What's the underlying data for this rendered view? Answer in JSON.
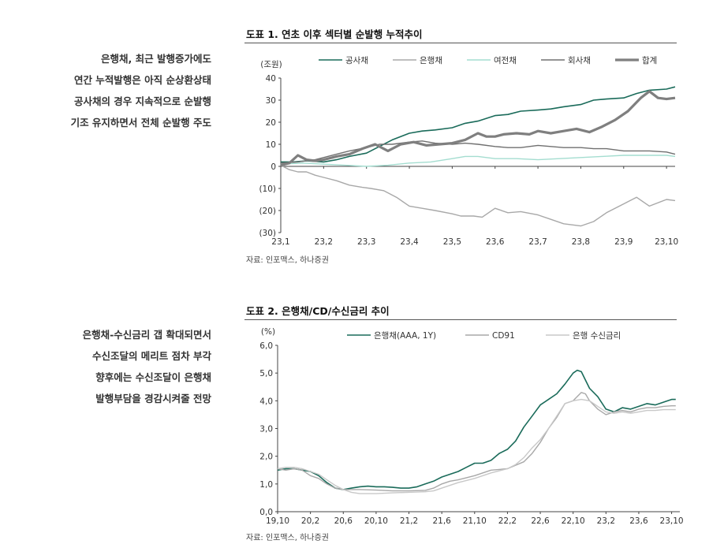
{
  "chart1": {
    "side_text": [
      "은행채, 최근 발행증가에도",
      "연간 누적발행은 아직 순상환상태",
      "공사채의 경우 지속적으로 순발행",
      "기조 유지하면서 전체 순발행 주도"
    ],
    "title": "도표 1. 연초 이후 섹터별 순발행 누적추이",
    "source": "자료: 인포맥스, 하나증권"
  },
  "chart2": {
    "side_text": [
      "은행채-수신금리 갭 확대되면서",
      "수신조달의 메리트 점차 부각",
      "향후에는 수신조달이 은행채",
      "발행부담을 경감시켜줄 전망"
    ],
    "title": "도표 2. 은행채/CD/수신금리 추이",
    "source": "자료: 인포맥스, 하나증권"
  },
  "chart_data": [
    {
      "type": "line",
      "title": "도표 1. 연초 이후 섹터별 순발행 누적추이",
      "ylabel": "(조원)",
      "ylim": [
        -30,
        40
      ],
      "yticks": [
        40,
        30,
        20,
        10,
        0,
        -10,
        -20,
        -30
      ],
      "ytick_labels": [
        "40",
        "30",
        "20",
        "10",
        "0",
        "(10)",
        "(20)",
        "(30)"
      ],
      "xlim": [
        1,
        10.2
      ],
      "xticks": [
        1,
        2,
        3,
        4,
        5,
        6,
        7,
        8,
        9,
        10
      ],
      "xtick_labels": [
        "23,1",
        "23,2",
        "23,3",
        "23,4",
        "23,5",
        "23,6",
        "23,7",
        "23,8",
        "23,9",
        "23,10"
      ],
      "grid": false,
      "legend_position": "top",
      "series": [
        {
          "name": "공사채",
          "color": "#1a6b5a",
          "width": 1.6,
          "x": [
            1,
            1.3,
            1.6,
            2,
            2.3,
            2.6,
            3,
            3.3,
            3.6,
            4,
            4.3,
            4.6,
            5,
            5.3,
            5.6,
            6,
            6.3,
            6.6,
            7,
            7.3,
            7.6,
            8,
            8.3,
            8.6,
            9,
            9.3,
            9.6,
            10,
            10.2
          ],
          "y": [
            2,
            2,
            2.5,
            2,
            3,
            4.5,
            6,
            9,
            12,
            15,
            16,
            16.5,
            17.5,
            19.5,
            20.5,
            23,
            23.5,
            25,
            25.5,
            26,
            27,
            28,
            30,
            30.5,
            31,
            33,
            34.5,
            35,
            36
          ]
        },
        {
          "name": "은행채",
          "color": "#a8a8a8",
          "width": 1.4,
          "x": [
            1,
            1.2,
            1.4,
            1.6,
            1.8,
            2,
            2.3,
            2.6,
            2.9,
            3.1,
            3.4,
            3.7,
            4,
            4.3,
            4.6,
            5,
            5.2,
            5.5,
            5.7,
            6,
            6.3,
            6.6,
            7,
            7.3,
            7.6,
            8,
            8.3,
            8.6,
            9,
            9.3,
            9.6,
            10,
            10.2
          ],
          "y": [
            0.5,
            -1.5,
            -2.5,
            -2.5,
            -4,
            -5,
            -6.5,
            -8.5,
            -9.5,
            -10,
            -11,
            -14,
            -18,
            -19,
            -20,
            -21.5,
            -22.5,
            -22.5,
            -23,
            -19,
            -21,
            -20.5,
            -22,
            -24,
            -26,
            -27,
            -25,
            -21,
            -17,
            -14,
            -18,
            -15,
            -15.5
          ]
        },
        {
          "name": "여전채",
          "color": "#a4ddd0",
          "width": 1.4,
          "x": [
            1,
            1.5,
            2,
            2.5,
            3,
            3.5,
            4,
            4.5,
            5,
            5.3,
            5.6,
            6,
            6.5,
            7,
            7.5,
            8,
            8.5,
            9,
            9.5,
            10,
            10.2
          ],
          "y": [
            1,
            1.5,
            1,
            0.5,
            0,
            0.5,
            1.5,
            2,
            3.5,
            4.5,
            4.5,
            3.5,
            3.5,
            3,
            3.5,
            4,
            4.5,
            5,
            5,
            5,
            4.5
          ]
        },
        {
          "name": "회사채",
          "color": "#707070",
          "width": 1.4,
          "x": [
            1,
            1.4,
            1.8,
            2,
            2.3,
            2.6,
            3,
            3.3,
            3.6,
            4,
            4.3,
            4.6,
            5,
            5.3,
            5.6,
            6,
            6.3,
            6.6,
            7,
            7.3,
            7.6,
            8,
            8.3,
            8.6,
            9,
            9.3,
            9.6,
            10,
            10.2
          ],
          "y": [
            1.5,
            2,
            3,
            4,
            5.5,
            7,
            8.5,
            10,
            10,
            11,
            11.5,
            10.5,
            10,
            10.5,
            10,
            9,
            8.5,
            8.5,
            9.5,
            9,
            8.5,
            8.5,
            8,
            8,
            7,
            7,
            7,
            6.5,
            5.5
          ]
        },
        {
          "name": "합계",
          "color": "#7f7f7f",
          "width": 3.2,
          "x": [
            1,
            1.2,
            1.4,
            1.6,
            1.8,
            2,
            2.3,
            2.6,
            2.9,
            3.2,
            3.5,
            3.8,
            4.1,
            4.4,
            4.7,
            5,
            5.3,
            5.6,
            5.8,
            6,
            6.2,
            6.5,
            6.8,
            7,
            7.3,
            7.6,
            7.9,
            8.2,
            8.5,
            8.8,
            9.1,
            9.4,
            9.6,
            9.8,
            10,
            10.2
          ],
          "y": [
            0.5,
            1.5,
            5,
            3,
            2.5,
            3,
            4.5,
            5.5,
            8,
            10,
            7,
            10,
            11,
            9.5,
            10,
            10.5,
            12,
            15,
            13.5,
            13.5,
            14.5,
            15,
            14.5,
            16,
            15,
            16,
            17,
            15.5,
            18,
            21,
            25,
            31,
            34,
            31,
            30.5,
            31
          ]
        }
      ]
    },
    {
      "type": "line",
      "title": "도표 2. 은행채/CD/수신금리 추이",
      "ylabel": "(%)",
      "ylim": [
        0,
        6
      ],
      "yticks": [
        0,
        1,
        2,
        3,
        4,
        5,
        6
      ],
      "ytick_labels": [
        "0,0",
        "1,0",
        "2,0",
        "3,0",
        "4,0",
        "5,0",
        "6,0"
      ],
      "xlim": [
        0,
        49
      ],
      "xticks": [
        0,
        4,
        8,
        12,
        16,
        20,
        24,
        28,
        32,
        36,
        40,
        44,
        48
      ],
      "xtick_labels": [
        "19,10",
        "20,2",
        "20,6",
        "20,10",
        "21,2",
        "21,6",
        "21,10",
        "22,2",
        "22,6",
        "22,10",
        "23,2",
        "23,6",
        "23,10"
      ],
      "grid": false,
      "legend_position": "top",
      "series": [
        {
          "name": "은행채(AAA, 1Y)",
          "color": "#1a6b5a",
          "width": 1.6,
          "x": [
            0,
            1,
            2,
            3,
            4,
            5,
            6,
            7,
            8,
            9,
            10,
            11,
            12,
            13,
            14,
            15,
            16,
            17,
            18,
            19,
            20,
            21,
            22,
            23,
            24,
            25,
            26,
            27,
            28,
            29,
            30,
            31,
            32,
            33,
            34,
            35,
            36,
            36.5,
            37,
            37.5,
            38,
            39,
            40,
            41,
            42,
            43,
            44,
            45,
            46,
            47,
            48,
            48.5
          ],
          "y": [
            1.5,
            1.55,
            1.55,
            1.5,
            1.45,
            1.3,
            1.05,
            0.85,
            0.8,
            0.85,
            0.9,
            0.92,
            0.9,
            0.9,
            0.88,
            0.85,
            0.85,
            0.9,
            1.0,
            1.1,
            1.25,
            1.35,
            1.45,
            1.6,
            1.75,
            1.75,
            1.85,
            2.1,
            2.25,
            2.55,
            3.05,
            3.45,
            3.85,
            4.05,
            4.25,
            4.6,
            5.0,
            5.1,
            5.05,
            4.75,
            4.45,
            4.15,
            3.7,
            3.6,
            3.75,
            3.7,
            3.8,
            3.9,
            3.85,
            3.95,
            4.05,
            4.05
          ]
        },
        {
          "name": "CD91",
          "color": "#a8a8a8",
          "width": 1.4,
          "x": [
            0,
            1,
            2,
            3,
            4,
            5,
            6,
            7,
            8,
            9,
            10,
            12,
            14,
            16,
            18,
            19,
            20,
            21,
            22,
            24,
            26,
            28,
            30,
            31,
            32,
            33,
            34,
            35,
            36,
            37,
            37.5,
            38,
            39,
            40,
            41,
            42,
            43,
            44,
            45,
            46,
            47,
            48,
            48.5
          ],
          "y": [
            1.55,
            1.5,
            1.55,
            1.5,
            1.3,
            1.2,
            1.0,
            0.85,
            0.8,
            0.8,
            0.8,
            0.78,
            0.75,
            0.75,
            0.77,
            0.85,
            1.0,
            1.1,
            1.15,
            1.3,
            1.5,
            1.55,
            1.8,
            2.1,
            2.5,
            3.0,
            3.4,
            3.9,
            4.0,
            4.3,
            4.25,
            4.0,
            3.7,
            3.5,
            3.6,
            3.65,
            3.6,
            3.7,
            3.75,
            3.75,
            3.8,
            3.82,
            3.82
          ]
        },
        {
          "name": "은행 수신금리",
          "color": "#c8c8c8",
          "width": 1.4,
          "x": [
            0,
            1,
            2,
            3,
            4,
            5,
            6,
            7,
            8,
            9,
            10,
            12,
            14,
            16,
            18,
            19,
            20,
            22,
            24,
            26,
            28,
            29,
            30,
            31,
            32,
            33,
            34,
            35,
            36,
            37,
            38,
            39,
            40,
            41,
            42,
            43,
            44,
            45,
            46,
            47,
            48,
            48.5
          ],
          "y": [
            1.55,
            1.6,
            1.6,
            1.55,
            1.45,
            1.35,
            1.15,
            0.95,
            0.8,
            0.7,
            0.65,
            0.65,
            0.68,
            0.7,
            0.72,
            0.75,
            0.85,
            1.05,
            1.2,
            1.4,
            1.55,
            1.7,
            1.95,
            2.3,
            2.6,
            3.0,
            3.45,
            3.9,
            4.0,
            4.05,
            4.0,
            3.8,
            3.6,
            3.55,
            3.6,
            3.55,
            3.6,
            3.65,
            3.65,
            3.68,
            3.68,
            3.68
          ]
        }
      ]
    }
  ]
}
